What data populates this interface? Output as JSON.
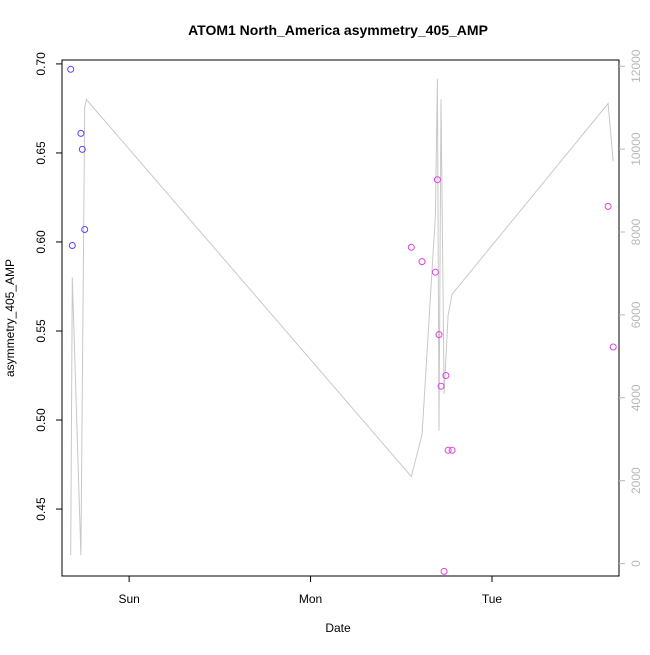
{
  "chart_data": {
    "type": "scatter",
    "title": "ATOM1 North_America asymmetry_405_AMP",
    "xlabel": "Date",
    "ylabel": "asymmetry_405_AMP",
    "x_unit": "days",
    "xlim": [
      -0.37,
      2.7
    ],
    "ylim": [
      0.4124,
      0.7022
    ],
    "y2lim": [
      -300,
      12150
    ],
    "x_ticks": [
      {
        "value": 0,
        "label": "Sun"
      },
      {
        "value": 1,
        "label": "Mon"
      },
      {
        "value": 2,
        "label": "Tue"
      }
    ],
    "y_ticks": [
      0.45,
      0.5,
      0.55,
      0.6,
      0.65,
      0.7
    ],
    "y_tick_labels": [
      "0.45",
      "0.50",
      "0.55",
      "0.60",
      "0.65",
      "0.70"
    ],
    "y2_ticks": [
      0,
      2000,
      4000,
      6000,
      8000,
      10000,
      12000
    ],
    "y2_tick_labels": [
      "0",
      "2000",
      "4000",
      "6000",
      "8000",
      "10000",
      "12000"
    ],
    "grid": false,
    "colors": {
      "points_early": "#5f3fff",
      "points_late": "#e040e0",
      "line": "#c8c8c8"
    },
    "series": [
      {
        "kind": "points",
        "axis": "left",
        "x": [
          -0.322,
          -0.313,
          -0.266,
          -0.258,
          -0.245,
          1.555,
          1.614,
          1.688,
          1.699,
          1.708,
          1.719,
          1.736,
          1.746,
          1.758,
          1.78,
          2.64,
          2.668
        ],
        "y": [
          0.697,
          0.598,
          0.661,
          0.652,
          0.607,
          0.597,
          0.589,
          0.583,
          0.635,
          0.548,
          0.519,
          0.415,
          0.525,
          0.483,
          0.483,
          0.62,
          0.541
        ],
        "colors": [
          "#5f3fff",
          "#5f3fff",
          "#5f3fff",
          "#5f3fff",
          "#5f3fff",
          "#e040e0",
          "#e040e0",
          "#e040e0",
          "#e040e0",
          "#e040e0",
          "#e040e0",
          "#e040e0",
          "#e040e0",
          "#e040e0",
          "#e040e0",
          "#e040e0",
          "#e040e0"
        ]
      },
      {
        "kind": "line",
        "axis": "right",
        "x": [
          -0.322,
          -0.313,
          -0.266,
          -0.245,
          -0.236,
          1.555,
          1.614,
          1.688,
          1.699,
          1.708,
          1.719,
          1.736,
          1.758,
          1.78,
          2.64,
          2.668
        ],
        "y": [
          200,
          6900,
          200,
          11000,
          11200,
          2100,
          3100,
          8400,
          11700,
          3200,
          11200,
          4100,
          6000,
          6500,
          11100,
          9700
        ]
      }
    ]
  }
}
